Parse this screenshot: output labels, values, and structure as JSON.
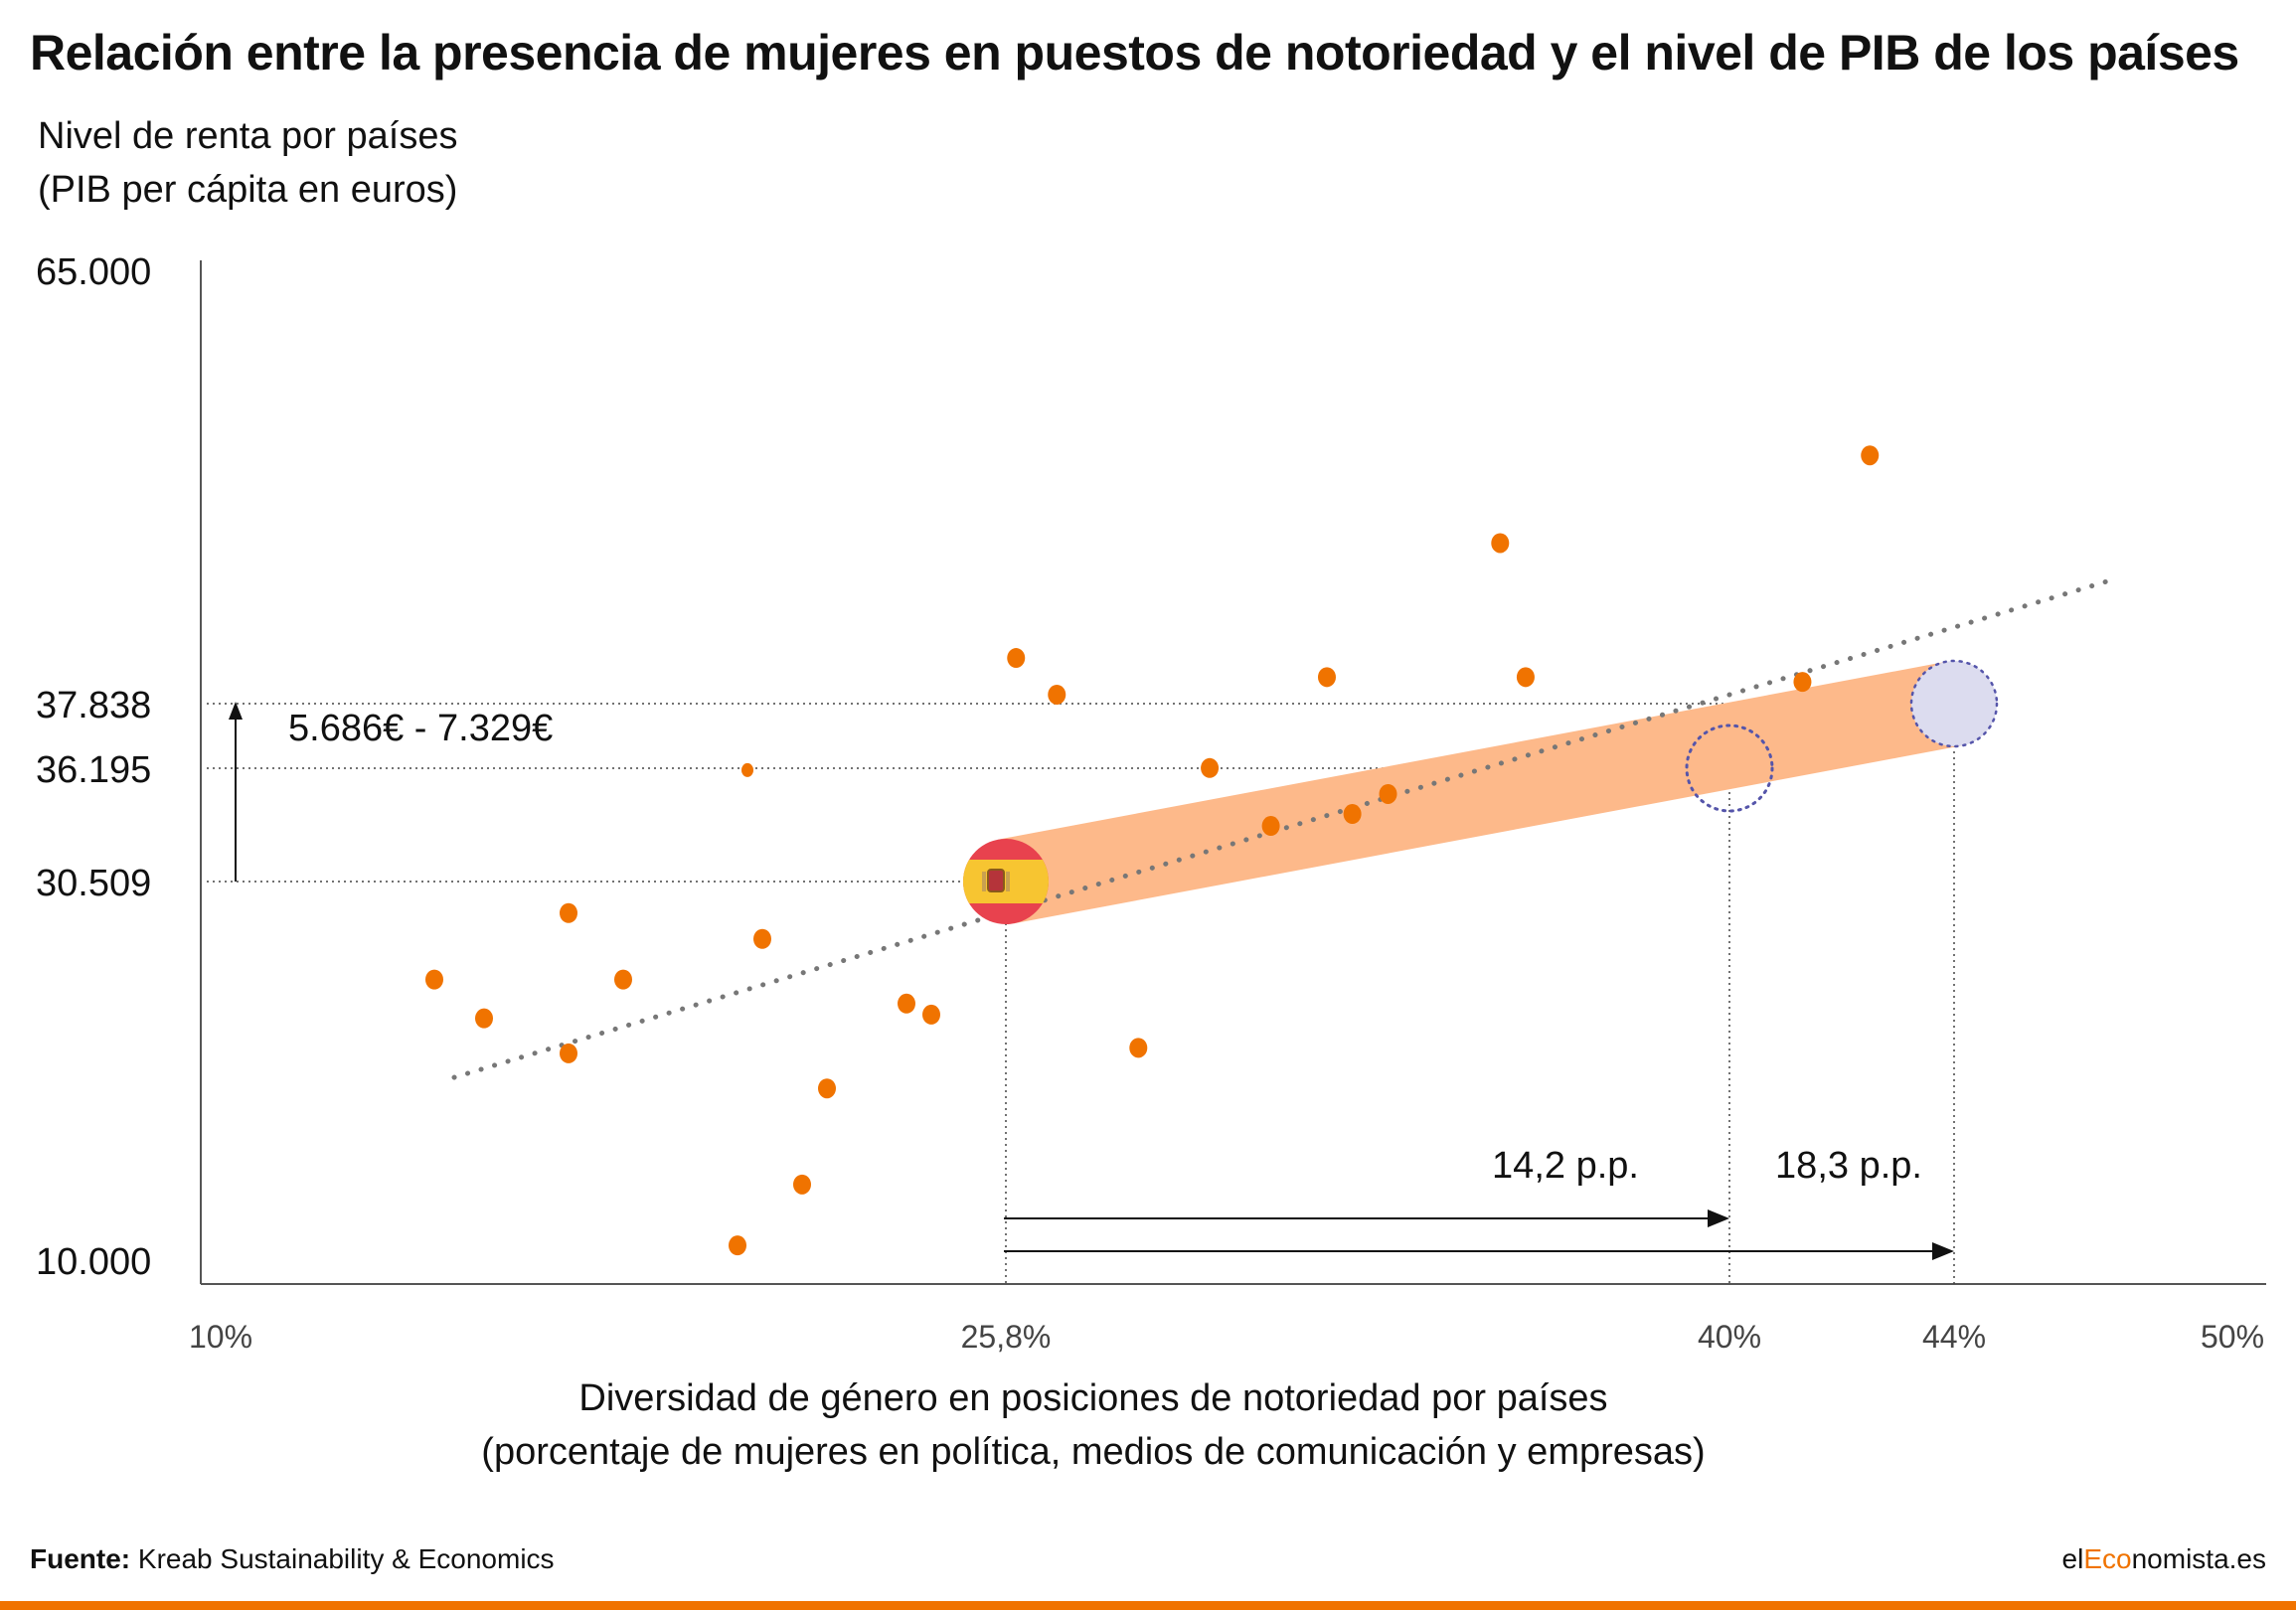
{
  "header": {
    "title": "Relación entre la presencia de mujeres en puestos de notoriedad y el nivel de PIB de los países"
  },
  "chart_data": {
    "type": "scatter",
    "ylabel": [
      "Nivel de renta por países",
      "(PIB per cápita en euros)"
    ],
    "xlabel": [
      "Diversidad de género en posiciones de notoriedad por países",
      "(porcentaje de mujeres en política, medios de comunicación y empresas)"
    ],
    "xlim": [
      10,
      50
    ],
    "ylim": [
      10000,
      65000
    ],
    "x_ticks": [
      {
        "value": 10,
        "label": "10%",
        "color": "#444444"
      },
      {
        "value": 25.8,
        "label": "25,8%",
        "color": "#444444"
      },
      {
        "value": 40,
        "label": "40%",
        "color": "#444444"
      },
      {
        "value": 44,
        "label": "44%",
        "color": "#444444"
      },
      {
        "value": 50,
        "label": "50%",
        "color": "#444444"
      }
    ],
    "y_ticks": [
      {
        "value": 65000,
        "label": "65.000"
      },
      {
        "value": 37838,
        "label": "37.838"
      },
      {
        "value": 36195,
        "label": "36.195"
      },
      {
        "value": 30509,
        "label": "30.509"
      },
      {
        "value": 10000,
        "label": "10.000"
      }
    ],
    "points": [
      {
        "x": 14.3,
        "y": 25200
      },
      {
        "x": 15.3,
        "y": 23100
      },
      {
        "x": 17.0,
        "y": 28800
      },
      {
        "x": 17.0,
        "y": 21200
      },
      {
        "x": 18.1,
        "y": 25200
      },
      {
        "x": 20.4,
        "y": 10800
      },
      {
        "x": 20.6,
        "y": 36100,
        "size": "small"
      },
      {
        "x": 20.9,
        "y": 27400
      },
      {
        "x": 21.7,
        "y": 14100
      },
      {
        "x": 22.2,
        "y": 19300
      },
      {
        "x": 23.8,
        "y": 23900
      },
      {
        "x": 24.3,
        "y": 23300
      },
      {
        "x": 26.0,
        "y": 40700
      },
      {
        "x": 26.8,
        "y": 38400
      },
      {
        "x": 28.4,
        "y": 21500
      },
      {
        "x": 29.8,
        "y": 36200
      },
      {
        "x": 31.0,
        "y": 33300
      },
      {
        "x": 32.1,
        "y": 39500
      },
      {
        "x": 32.6,
        "y": 33900
      },
      {
        "x": 33.3,
        "y": 34900
      },
      {
        "x": 35.5,
        "y": 47900
      },
      {
        "x": 36.0,
        "y": 39500
      },
      {
        "x": 41.3,
        "y": 39200
      },
      {
        "x": 42.5,
        "y": 53400
      }
    ],
    "trendline": {
      "from": {
        "x": 14.7,
        "y": 19900
      },
      "to": {
        "x": 47.5,
        "y": 45700
      }
    },
    "spain": {
      "x": 25.8,
      "y": 30509
    },
    "targets": [
      {
        "x": 40,
        "y": 36195,
        "style": "dotted-circle"
      },
      {
        "x": 44,
        "y": 37838,
        "style": "filled-circle"
      }
    ],
    "annotations": {
      "range_label": "5.686€ - 7.329€",
      "pp_labels": [
        {
          "to_x": 40,
          "label": "14,2 p.p."
        },
        {
          "to_x": 44,
          "label": "18,3 p.p."
        }
      ]
    },
    "colors": {
      "points": "#f07300",
      "band": "#fdb98a",
      "target_fill": "#dcdcef",
      "target_stroke": "#5555aa",
      "trend": "#777777",
      "guide": "#444444",
      "flag_red": "#e8424e",
      "flag_yellow": "#f7c531"
    }
  },
  "footer": {
    "source_label": "Fuente:",
    "source_text": "Kreab Sustainability & Economics",
    "brand_pre": "el",
    "brand_eco": "Eco",
    "brand_post": "nomista.es"
  }
}
